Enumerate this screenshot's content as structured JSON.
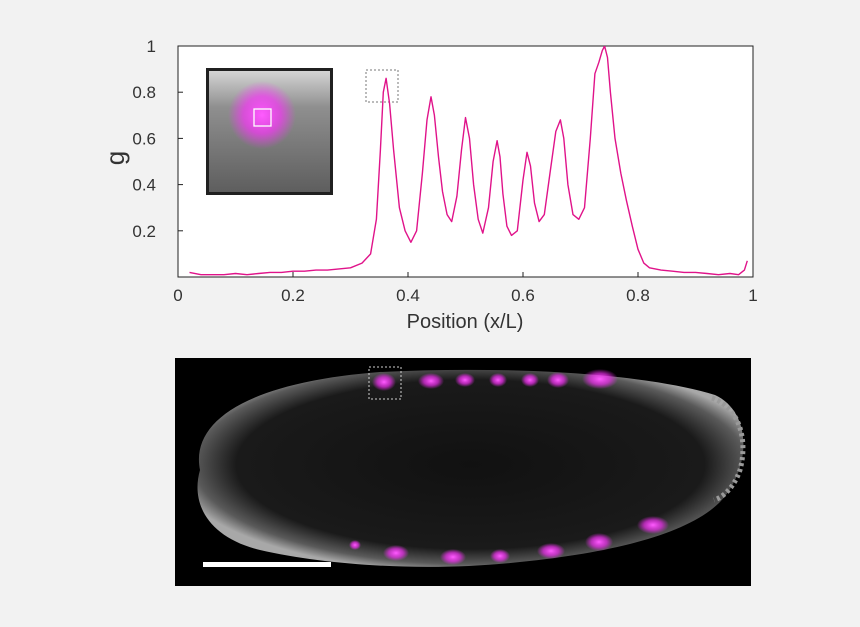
{
  "colors": {
    "background": "#f2f2f2",
    "series": "#e0138a",
    "axis": "#222222",
    "panel": "#000000",
    "stain": "#ff40ff",
    "scalebar": "#ffffff"
  },
  "chart_data": {
    "type": "line",
    "title": "",
    "xlabel": "Position (x/L)",
    "ylabel": "g",
    "xlim": [
      0,
      1
    ],
    "ylim": [
      0,
      1
    ],
    "grid": false,
    "xticks": [
      {
        "value": 0,
        "label": "0"
      },
      {
        "value": 0.2,
        "label": "0.2"
      },
      {
        "value": 0.4,
        "label": "0.4"
      },
      {
        "value": 0.6,
        "label": "0.6"
      },
      {
        "value": 0.8,
        "label": "0.8"
      },
      {
        "value": 1,
        "label": "1"
      }
    ],
    "yticks": [
      {
        "value": 0.2,
        "label": "0.2"
      },
      {
        "value": 0.4,
        "label": "0.4"
      },
      {
        "value": 0.6,
        "label": "0.6"
      },
      {
        "value": 0.8,
        "label": "0.8"
      },
      {
        "value": 1,
        "label": "1"
      }
    ],
    "series": [
      {
        "x": [
          0.02,
          0.04,
          0.06,
          0.08,
          0.1,
          0.12,
          0.14,
          0.16,
          0.18,
          0.2,
          0.22,
          0.24,
          0.26,
          0.28,
          0.3,
          0.32,
          0.335,
          0.345,
          0.352,
          0.357,
          0.362,
          0.368,
          0.375,
          0.385,
          0.395,
          0.405,
          0.415,
          0.425,
          0.433,
          0.44,
          0.446,
          0.453,
          0.46,
          0.468,
          0.476,
          0.485,
          0.493,
          0.5,
          0.507,
          0.514,
          0.522,
          0.53,
          0.54,
          0.548,
          0.555,
          0.56,
          0.565,
          0.572,
          0.58,
          0.59,
          0.6,
          0.607,
          0.613,
          0.62,
          0.628,
          0.637,
          0.647,
          0.657,
          0.665,
          0.671,
          0.678,
          0.687,
          0.697,
          0.707,
          0.717,
          0.725,
          0.732,
          0.738,
          0.742,
          0.747,
          0.752,
          0.76,
          0.77,
          0.78,
          0.79,
          0.8,
          0.81,
          0.82,
          0.84,
          0.86,
          0.88,
          0.9,
          0.92,
          0.94,
          0.96,
          0.975,
          0.985,
          0.99
        ],
        "y": [
          0.02,
          0.01,
          0.01,
          0.01,
          0.015,
          0.01,
          0.015,
          0.02,
          0.02,
          0.025,
          0.025,
          0.03,
          0.03,
          0.035,
          0.04,
          0.06,
          0.1,
          0.25,
          0.55,
          0.8,
          0.86,
          0.75,
          0.55,
          0.3,
          0.2,
          0.15,
          0.2,
          0.45,
          0.68,
          0.78,
          0.7,
          0.52,
          0.37,
          0.27,
          0.24,
          0.35,
          0.55,
          0.69,
          0.6,
          0.4,
          0.25,
          0.19,
          0.3,
          0.5,
          0.59,
          0.52,
          0.36,
          0.22,
          0.18,
          0.2,
          0.42,
          0.54,
          0.48,
          0.32,
          0.24,
          0.27,
          0.45,
          0.63,
          0.68,
          0.6,
          0.4,
          0.27,
          0.25,
          0.3,
          0.6,
          0.88,
          0.93,
          0.98,
          1.0,
          0.95,
          0.8,
          0.6,
          0.45,
          0.33,
          0.22,
          0.12,
          0.06,
          0.04,
          0.03,
          0.025,
          0.02,
          0.02,
          0.015,
          0.01,
          0.015,
          0.01,
          0.03,
          0.07
        ]
      }
    ]
  }
}
